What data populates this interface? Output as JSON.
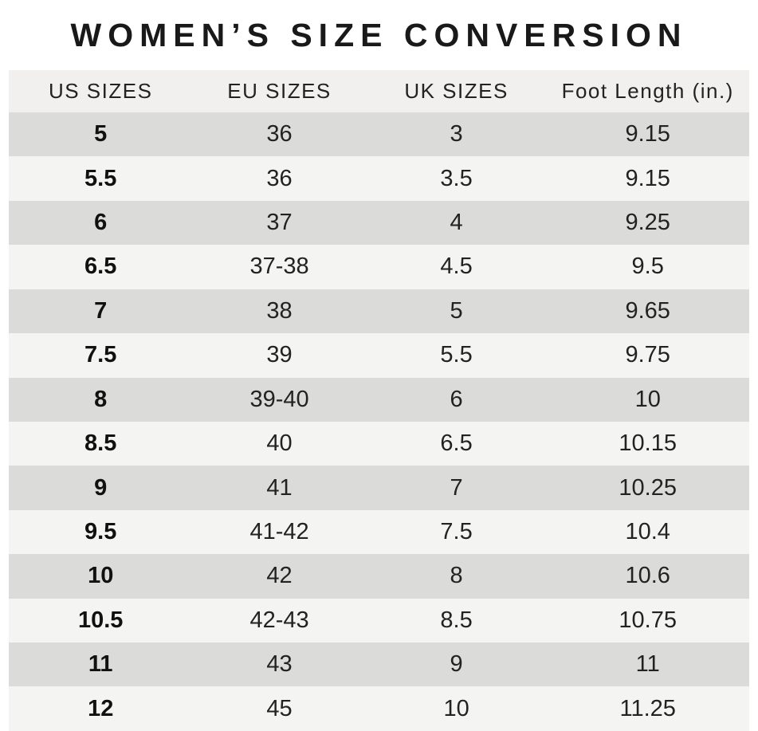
{
  "title": "WOMEN’S SIZE CONVERSION",
  "colors": {
    "background": "#ffffff",
    "header_bg": "#f1f0ee",
    "row_dark": "#dbdbda",
    "row_light": "#f4f4f3",
    "text": "#1e1e1e"
  },
  "chart_data": {
    "type": "table",
    "title": "WOMEN’S SIZE CONVERSION",
    "columns": [
      "US SIZES",
      "EU SIZES",
      "UK SIZES",
      "Foot Length (in.)"
    ],
    "rows": [
      [
        "5",
        "36",
        "3",
        "9.15"
      ],
      [
        "5.5",
        "36",
        "3.5",
        "9.15"
      ],
      [
        "6",
        "37",
        "4",
        "9.25"
      ],
      [
        "6.5",
        "37-38",
        "4.5",
        "9.5"
      ],
      [
        "7",
        "38",
        "5",
        "9.65"
      ],
      [
        "7.5",
        "39",
        "5.5",
        "9.75"
      ],
      [
        "8",
        "39-40",
        "6",
        "10"
      ],
      [
        "8.5",
        "40",
        "6.5",
        "10.15"
      ],
      [
        "9",
        "41",
        "7",
        "10.25"
      ],
      [
        "9.5",
        "41-42",
        "7.5",
        "10.4"
      ],
      [
        "10",
        "42",
        "8",
        "10.6"
      ],
      [
        "10.5",
        "42-43",
        "8.5",
        "10.75"
      ],
      [
        "11",
        "43",
        "9",
        "11"
      ],
      [
        "12",
        "45",
        "10",
        "11.25"
      ]
    ]
  }
}
